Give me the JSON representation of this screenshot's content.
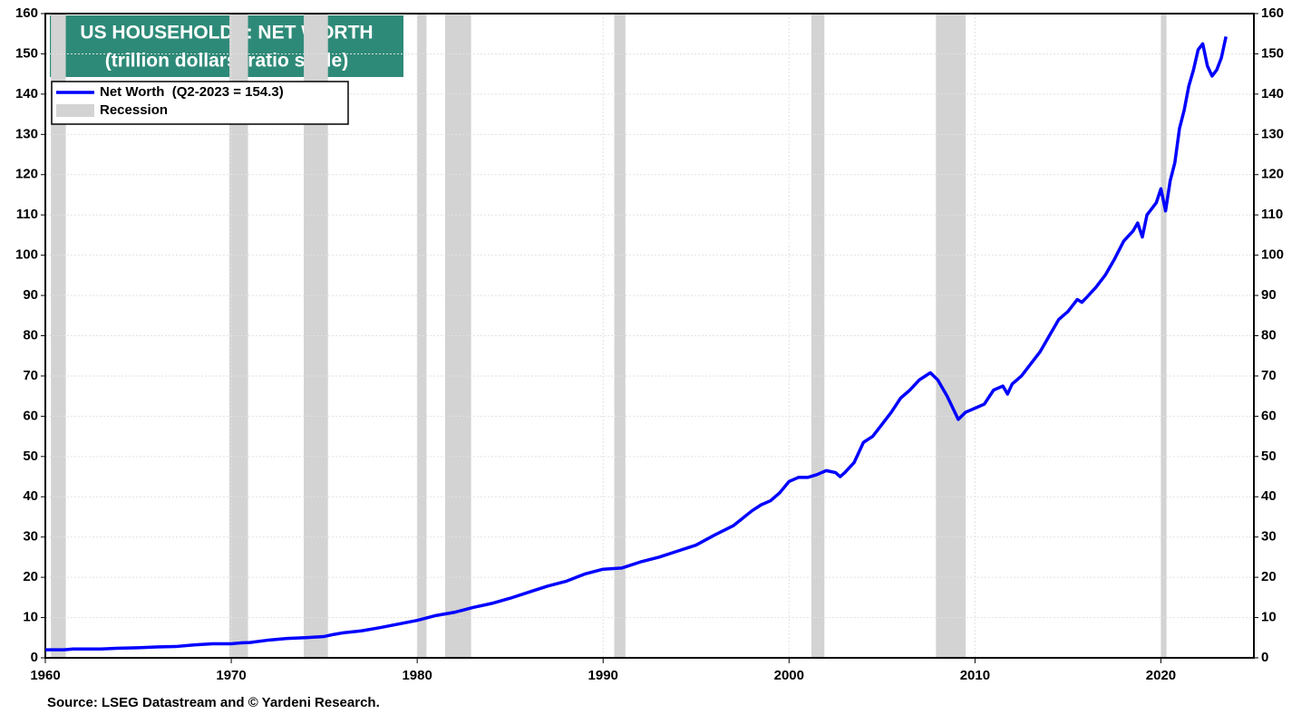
{
  "chart_data": {
    "type": "line",
    "title": "US HOUSEHOLDS: NET WORTH",
    "subtitle": "(trillion dollars, ratio scale)",
    "source": "Source: LSEG Datastream and © Yardeni Research.",
    "x": [
      1960,
      1961,
      1961.5,
      1962,
      1963,
      1964,
      1965,
      1966,
      1967,
      1968,
      1969,
      1970,
      1970.5,
      1971,
      1972,
      1973,
      1974,
      1975,
      1975.5,
      1976,
      1977,
      1978,
      1979,
      1980,
      1981,
      1982,
      1983,
      1984,
      1985,
      1986,
      1987,
      1988,
      1989,
      1990,
      1991,
      1992,
      1993,
      1994,
      1995,
      1996,
      1997,
      1998,
      1998.5,
      1999,
      1999.5,
      2000,
      2000.5,
      2001,
      2001.5,
      2002,
      2002.5,
      2002.75,
      2003,
      2003.5,
      2004,
      2004.5,
      2005,
      2005.5,
      2006,
      2006.5,
      2007,
      2007.6,
      2008,
      2008.5,
      2009.1,
      2009.5,
      2010,
      2010.5,
      2011,
      2011.5,
      2011.75,
      2012,
      2012.5,
      2013,
      2013.5,
      2014,
      2014.5,
      2015,
      2015.5,
      2015.75,
      2016,
      2016.5,
      2017,
      2017.5,
      2018,
      2018.5,
      2018.75,
      2019,
      2019.25,
      2019.75,
      2020,
      2020.25,
      2020.5,
      2020.75,
      2021,
      2021.25,
      2021.5,
      2021.75,
      2022,
      2022.25,
      2022.5,
      2022.75,
      2023,
      2023.25,
      2023.5
    ],
    "series": [
      {
        "name": "Net Worth  (Q2-2023 = 154.3)",
        "color": "#0000ff",
        "values": [
          2.0,
          2.0,
          2.2,
          2.2,
          2.2,
          2.4,
          2.5,
          2.7,
          2.8,
          3.2,
          3.5,
          3.5,
          3.7,
          3.8,
          4.4,
          4.8,
          5.0,
          5.3,
          5.8,
          6.2,
          6.7,
          7.5,
          8.4,
          9.3,
          10.5,
          11.3,
          12.5,
          13.5,
          14.8,
          16.3,
          17.8,
          19.0,
          20.8,
          22.0,
          22.3,
          23.8,
          25.0,
          26.5,
          28.0,
          30.5,
          32.8,
          36.5,
          38,
          39.0,
          41,
          43.8,
          44.8,
          44.8,
          45.5,
          46.5,
          46,
          45.0,
          46.0,
          48.5,
          53.5,
          55,
          58,
          61,
          64.5,
          66.5,
          69,
          70.8,
          69,
          65,
          59.2,
          61,
          62,
          63,
          66.5,
          67.5,
          65.5,
          68,
          70,
          73,
          76,
          80,
          84,
          86,
          89,
          88.3,
          89.5,
          92,
          95,
          99,
          103.5,
          106,
          108,
          104.5,
          110,
          113,
          116.5,
          111,
          118.5,
          123,
          131.5,
          136,
          142,
          146,
          151,
          152.5,
          147,
          144.5,
          146,
          149,
          154.3
        ]
      }
    ],
    "recession_label": "Recession",
    "recession_color": "#d3d3d3",
    "recessions": [
      [
        1960.3,
        1961.1
      ],
      [
        1969.9,
        1970.9
      ],
      [
        1973.9,
        1975.2
      ],
      [
        1980.0,
        1980.5
      ],
      [
        1981.5,
        1982.9
      ],
      [
        1990.6,
        1991.2
      ],
      [
        2001.2,
        2001.9
      ],
      [
        2007.9,
        2009.5
      ],
      [
        2020.0,
        2020.3
      ]
    ],
    "xlim": [
      1960,
      2025
    ],
    "xticks": [
      1960,
      1970,
      1980,
      1990,
      2000,
      2010,
      2020
    ],
    "ylim": [
      0,
      160
    ],
    "yticks": [
      0,
      10,
      20,
      30,
      40,
      50,
      60,
      70,
      80,
      90,
      100,
      110,
      120,
      130,
      140,
      150,
      160
    ],
    "y2lim": [
      0,
      160
    ],
    "y2ticks": [
      0,
      10,
      20,
      30,
      40,
      50,
      60,
      70,
      80,
      90,
      100,
      110,
      120,
      130,
      140,
      150,
      160
    ],
    "grid": true,
    "title_color": "#2e8a78"
  }
}
